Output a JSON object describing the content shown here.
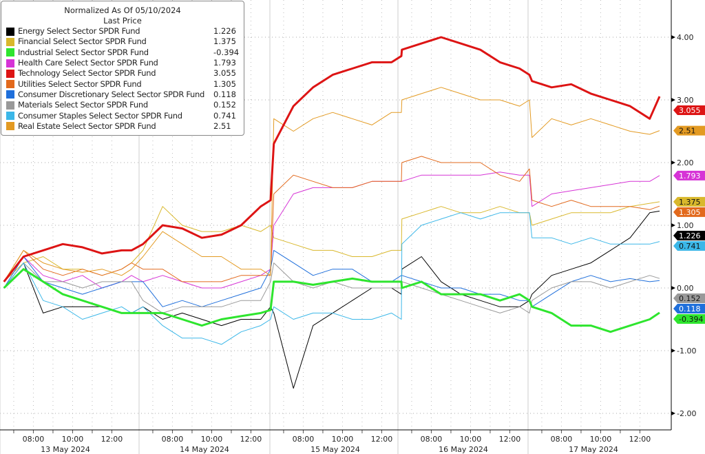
{
  "chart_data": {
    "type": "line",
    "legend": {
      "title": "Normalized As Of 05/10/2024",
      "subtitle": "Last Price",
      "placement": "top-left"
    },
    "days": [
      "13 May 2024",
      "14 May 2024",
      "15 May 2024",
      "16 May 2024",
      "17 May 2024"
    ],
    "time_ticks": [
      "08:00",
      "10:00",
      "12:00"
    ],
    "sample_times": [
      "06:30",
      "07:30",
      "08:30",
      "09:30",
      "10:30",
      "11:30",
      "12:30",
      "13:00"
    ],
    "y_ticks": [
      "4.00",
      "3.00",
      "2.00",
      "1.00",
      "0.00",
      "-1.00",
      "-2.00"
    ],
    "ylim": [
      -2.3,
      4.6
    ],
    "grid": true,
    "y_axis_side": "right",
    "series": [
      {
        "name": "Energy Select Sector SPDR Fund",
        "last": "1.226",
        "color": "#000000",
        "width": 1,
        "values": [
          0.0,
          0.4,
          -0.4,
          -0.3,
          -0.3,
          -0.3,
          -0.4,
          -0.4,
          -0.3,
          -0.5,
          -0.4,
          -0.5,
          -0.6,
          -0.5,
          -0.5,
          -0.3,
          -0.4,
          -1.6,
          -0.6,
          -0.4,
          -0.2,
          0.0,
          0.0,
          -0.1,
          0.3,
          0.5,
          0.1,
          -0.1,
          -0.2,
          -0.3,
          -0.3,
          -0.2,
          -0.1,
          0.2,
          0.3,
          0.4,
          0.6,
          0.8,
          1.2,
          1.226
        ]
      },
      {
        "name": "Financial Select Sector SPDR Fund",
        "last": "1.375",
        "color": "#d9b82c",
        "width": 1,
        "values": [
          0.1,
          0.4,
          0.5,
          0.3,
          0.3,
          0.2,
          0.3,
          0.4,
          0.6,
          1.3,
          1.0,
          0.9,
          0.9,
          1.0,
          0.9,
          1.0,
          0.8,
          0.7,
          0.6,
          0.6,
          0.5,
          0.5,
          0.6,
          0.6,
          1.1,
          1.2,
          1.3,
          1.2,
          1.2,
          1.3,
          1.2,
          1.2,
          1.0,
          1.1,
          1.2,
          1.2,
          1.2,
          1.3,
          1.35,
          1.375
        ]
      },
      {
        "name": "Industrial Select Sector SPDR Fund",
        "last": "-0.394",
        "color": "#2ee52e",
        "width": 3,
        "values": [
          0.0,
          0.3,
          0.1,
          -0.1,
          -0.2,
          -0.3,
          -0.4,
          -0.4,
          -0.4,
          -0.4,
          -0.5,
          -0.6,
          -0.5,
          -0.45,
          -0.4,
          -0.35,
          0.1,
          0.1,
          0.05,
          0.1,
          0.15,
          0.1,
          0.1,
          0.1,
          0.0,
          0.1,
          -0.1,
          -0.1,
          -0.1,
          -0.2,
          -0.1,
          -0.2,
          -0.3,
          -0.4,
          -0.6,
          -0.6,
          -0.7,
          -0.6,
          -0.5,
          -0.394
        ]
      },
      {
        "name": "Health Care Select Sector SPDR Fund",
        "last": "1.793",
        "color": "#d633d6",
        "width": 1,
        "values": [
          0.1,
          0.5,
          0.2,
          0.1,
          0.2,
          0.0,
          0.1,
          0.2,
          0.1,
          0.2,
          0.1,
          0.0,
          0.0,
          0.1,
          0.2,
          0.3,
          1.0,
          1.5,
          1.6,
          1.6,
          1.6,
          1.7,
          1.7,
          1.7,
          1.7,
          1.8,
          1.8,
          1.8,
          1.8,
          1.85,
          1.8,
          1.8,
          1.3,
          1.5,
          1.55,
          1.6,
          1.65,
          1.7,
          1.7,
          1.793
        ]
      },
      {
        "name": "Technology Select Sector SPDR Fund",
        "last": "3.055",
        "color": "#dd1414",
        "width": 3,
        "values": [
          0.1,
          0.5,
          0.6,
          0.7,
          0.65,
          0.55,
          0.6,
          0.6,
          0.7,
          1.0,
          0.95,
          0.8,
          0.85,
          1.0,
          1.3,
          1.4,
          2.3,
          2.9,
          3.2,
          3.4,
          3.5,
          3.6,
          3.6,
          3.7,
          3.8,
          3.9,
          4.0,
          3.9,
          3.8,
          3.6,
          3.5,
          3.4,
          3.3,
          3.2,
          3.25,
          3.1,
          3.0,
          2.9,
          2.7,
          3.055
        ]
      },
      {
        "name": "Utilities Select Sector SPDR Fund",
        "last": "1.305",
        "color": "#e2691c",
        "width": 1,
        "values": [
          0.1,
          0.6,
          0.3,
          0.2,
          0.3,
          0.2,
          0.3,
          0.4,
          0.3,
          0.3,
          0.1,
          0.1,
          0.1,
          0.2,
          0.2,
          0.2,
          1.5,
          1.8,
          1.7,
          1.6,
          1.6,
          1.7,
          1.7,
          1.7,
          2.0,
          2.1,
          2.0,
          2.0,
          2.0,
          1.8,
          1.7,
          1.9,
          1.4,
          1.3,
          1.4,
          1.3,
          1.3,
          1.3,
          1.25,
          1.305
        ]
      },
      {
        "name": "Consumer Discretionary Select Sector SPDR Fund",
        "last": "0.118",
        "color": "#1f6fdb",
        "width": 1,
        "values": [
          0.0,
          0.5,
          0.1,
          0.0,
          -0.1,
          0.0,
          0.1,
          0.1,
          0.1,
          -0.3,
          -0.2,
          -0.3,
          -0.2,
          -0.1,
          0.0,
          0.3,
          0.6,
          0.4,
          0.2,
          0.3,
          0.3,
          0.1,
          0.1,
          0.2,
          0.2,
          0.1,
          0.0,
          0.0,
          -0.1,
          -0.1,
          -0.2,
          -0.2,
          -0.3,
          -0.1,
          0.1,
          0.2,
          0.1,
          0.15,
          0.1,
          0.118
        ]
      },
      {
        "name": "Materials Select Sector SPDR Fund",
        "last": "0.152",
        "color": "#999999",
        "width": 1,
        "values": [
          0.0,
          0.4,
          0.1,
          0.1,
          0.0,
          0.1,
          0.1,
          0.1,
          -0.2,
          -0.4,
          -0.3,
          -0.3,
          -0.3,
          -0.2,
          -0.2,
          0.1,
          0.4,
          0.1,
          0.0,
          0.1,
          0.0,
          0.0,
          0.0,
          0.0,
          0.1,
          0.0,
          -0.1,
          -0.2,
          -0.3,
          -0.4,
          -0.3,
          -0.4,
          -0.2,
          0.0,
          0.1,
          0.1,
          0.0,
          0.1,
          0.2,
          0.152
        ]
      },
      {
        "name": "Consumer Staples Select Sector SPDR Fund",
        "last": "0.741",
        "color": "#3bb7e8",
        "width": 1,
        "values": [
          0.0,
          0.4,
          -0.2,
          -0.3,
          -0.5,
          -0.4,
          -0.3,
          -0.4,
          -0.3,
          -0.6,
          -0.8,
          -0.8,
          -0.9,
          -0.7,
          -0.6,
          -0.5,
          -0.3,
          -0.5,
          -0.4,
          -0.4,
          -0.5,
          -0.5,
          -0.4,
          -0.5,
          0.7,
          1.0,
          1.1,
          1.2,
          1.1,
          1.2,
          1.2,
          1.2,
          0.8,
          0.8,
          0.7,
          0.8,
          0.7,
          0.7,
          0.7,
          0.741
        ]
      },
      {
        "name": "Real Estate Select Sector SPDR Fund",
        "last": "2.51",
        "color": "#e39a22",
        "width": 1,
        "values": [
          0.1,
          0.6,
          0.4,
          0.3,
          0.25,
          0.3,
          0.2,
          0.3,
          0.5,
          0.9,
          0.7,
          0.5,
          0.5,
          0.3,
          0.3,
          0.2,
          2.7,
          2.5,
          2.7,
          2.8,
          2.7,
          2.6,
          2.8,
          2.8,
          3.0,
          3.1,
          3.2,
          3.1,
          3.0,
          3.0,
          2.9,
          3.0,
          2.4,
          2.7,
          2.6,
          2.7,
          2.6,
          2.5,
          2.45,
          2.51
        ]
      }
    ]
  }
}
